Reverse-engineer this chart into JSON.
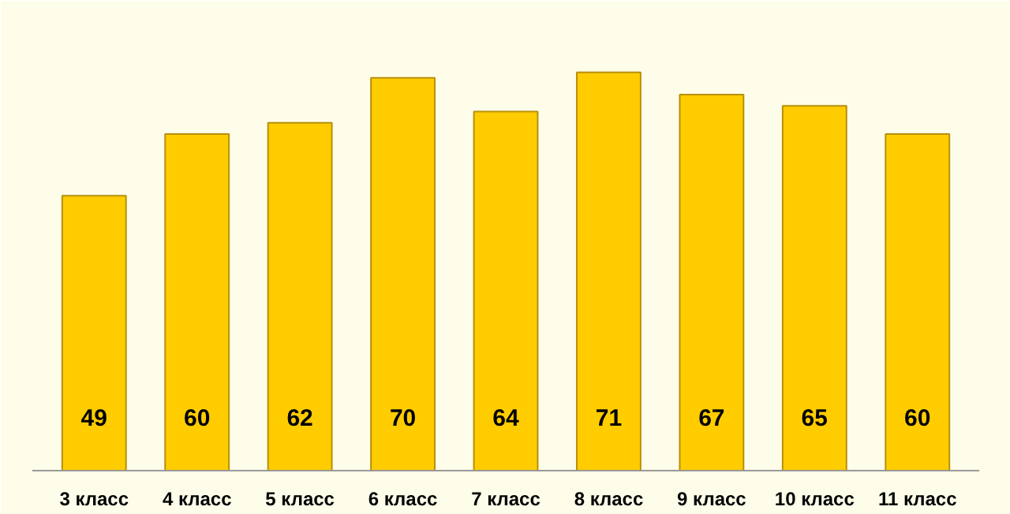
{
  "chart_data": {
    "type": "bar",
    "categories": [
      "3 класс",
      "4 класс",
      "5 класс",
      "6 класс",
      "7 класс",
      "8 класс",
      "9 класс",
      "10 класс",
      "11 класс"
    ],
    "values": [
      49,
      60,
      62,
      70,
      64,
      71,
      67,
      65,
      60
    ],
    "color": "#ffcc00",
    "data_labels": true
  }
}
